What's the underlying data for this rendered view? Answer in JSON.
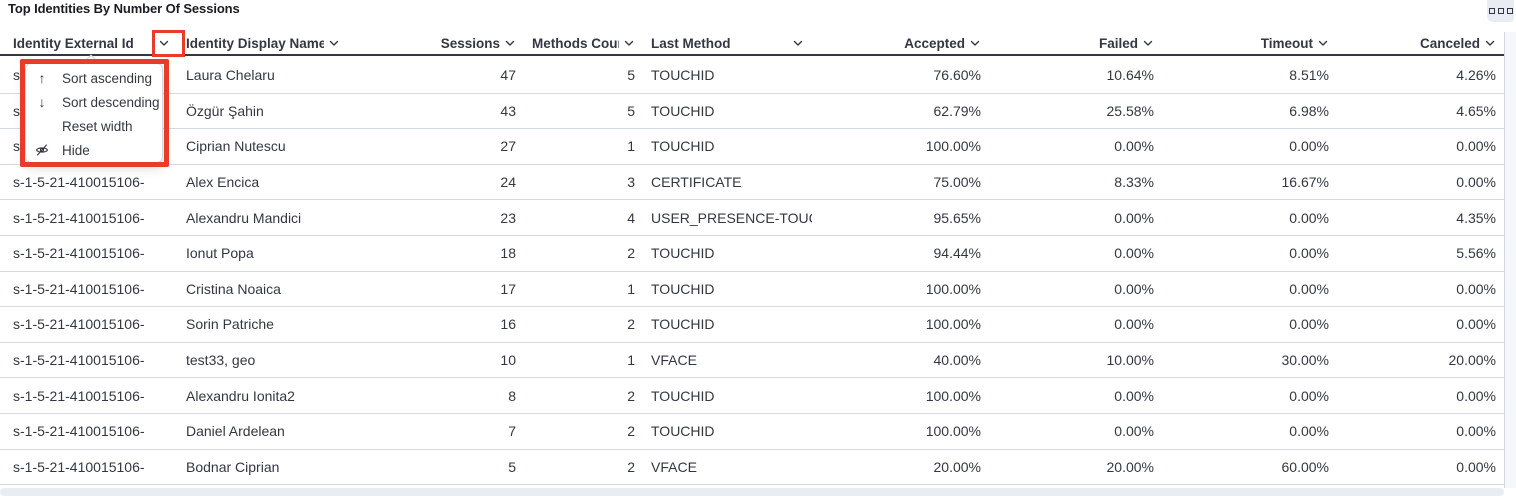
{
  "panel": {
    "title": "Top Identities By Number Of Sessions",
    "options_icon": "boxes-horizontal-icon"
  },
  "table": {
    "columns": [
      {
        "id": "external_id",
        "label": "Identity External Id",
        "align": "left"
      },
      {
        "id": "display_name",
        "label": "Identity Display Name",
        "align": "left"
      },
      {
        "id": "sessions",
        "label": "Sessions",
        "align": "right"
      },
      {
        "id": "methods_count",
        "label": "Methods Count",
        "align": "right"
      },
      {
        "id": "last_method",
        "label": "Last Method",
        "align": "left"
      },
      {
        "id": "accepted",
        "label": "Accepted",
        "align": "right"
      },
      {
        "id": "failed",
        "label": "Failed",
        "align": "right"
      },
      {
        "id": "timeout",
        "label": "Timeout",
        "align": "right"
      },
      {
        "id": "canceled",
        "label": "Canceled",
        "align": "right"
      }
    ],
    "rows": [
      [
        "s-1-5-21-410015106-",
        "Laura Chelaru",
        "47",
        "5",
        "TOUCHID",
        "76.60%",
        "10.64%",
        "8.51%",
        "4.26%"
      ],
      [
        "s-1-5-21-410015106-",
        "Özgür Şahin",
        "43",
        "5",
        "TOUCHID",
        "62.79%",
        "25.58%",
        "6.98%",
        "4.65%"
      ],
      [
        "s-1-5-21-410015106-",
        "Ciprian Nutescu",
        "27",
        "1",
        "TOUCHID",
        "100.00%",
        "0.00%",
        "0.00%",
        "0.00%"
      ],
      [
        "s-1-5-21-410015106-",
        "Alex Encica",
        "24",
        "3",
        "CERTIFICATE",
        "75.00%",
        "8.33%",
        "16.67%",
        "0.00%"
      ],
      [
        "s-1-5-21-410015106-",
        "Alexandru Mandici",
        "23",
        "4",
        "USER_PRESENCE-TOUC",
        "95.65%",
        "0.00%",
        "0.00%",
        "4.35%"
      ],
      [
        "s-1-5-21-410015106-",
        "Ionut Popa",
        "18",
        "2",
        "TOUCHID",
        "94.44%",
        "0.00%",
        "0.00%",
        "5.56%"
      ],
      [
        "s-1-5-21-410015106-",
        "Cristina Noaica",
        "17",
        "1",
        "TOUCHID",
        "100.00%",
        "0.00%",
        "0.00%",
        "0.00%"
      ],
      [
        "s-1-5-21-410015106-",
        "Sorin Patriche",
        "16",
        "2",
        "TOUCHID",
        "100.00%",
        "0.00%",
        "0.00%",
        "0.00%"
      ],
      [
        "s-1-5-21-410015106-",
        "test33, geo",
        "10",
        "1",
        "VFACE",
        "40.00%",
        "10.00%",
        "30.00%",
        "20.00%"
      ],
      [
        "s-1-5-21-410015106-",
        "Alexandru Ionita2",
        "8",
        "2",
        "TOUCHID",
        "100.00%",
        "0.00%",
        "0.00%",
        "0.00%"
      ],
      [
        "s-1-5-21-410015106-",
        "Daniel Ardelean",
        "7",
        "2",
        "TOUCHID",
        "100.00%",
        "0.00%",
        "0.00%",
        "0.00%"
      ],
      [
        "s-1-5-21-410015106-",
        "Bodnar Ciprian",
        "5",
        "2",
        "VFACE",
        "20.00%",
        "20.00%",
        "60.00%",
        "0.00%"
      ]
    ]
  },
  "column_menu": {
    "items": [
      {
        "icon": "arrow-up-icon",
        "label": "Sort ascending"
      },
      {
        "icon": "arrow-down-icon",
        "label": "Sort descending"
      },
      {
        "icon": "none",
        "label": "Reset width"
      },
      {
        "icon": "eye-slash-icon",
        "label": "Hide"
      }
    ]
  },
  "colors": {
    "annotation": "#e83b28",
    "text": "#343741",
    "header_border": "#343741",
    "row_border": "#d3dae6"
  }
}
